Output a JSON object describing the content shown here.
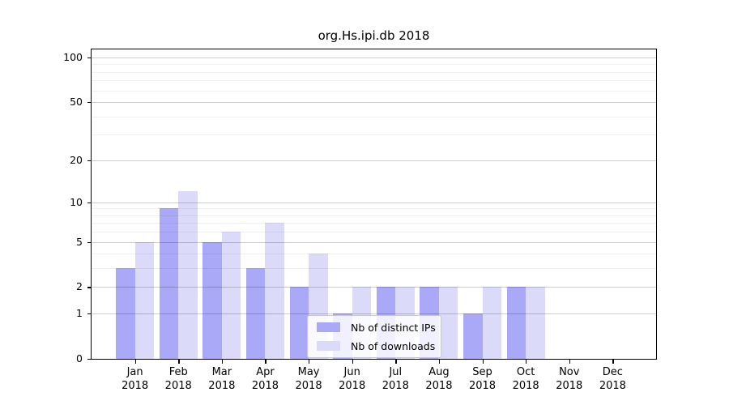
{
  "chart_data": {
    "type": "bar",
    "title": "org.Hs.ipi.db 2018",
    "categories": [
      "Jan 2018",
      "Feb 2018",
      "Mar 2018",
      "Apr 2018",
      "May 2018",
      "Jun 2018",
      "Jul 2018",
      "Aug 2018",
      "Sep 2018",
      "Oct 2018",
      "Nov 2018",
      "Dec 2018"
    ],
    "series": [
      {
        "name": "Nb of distinct IPs",
        "color": "#a9a9f7",
        "values": [
          3,
          9,
          5,
          3,
          2,
          1,
          2,
          2,
          1,
          2,
          0,
          0
        ]
      },
      {
        "name": "Nb of downloads",
        "color": "#dbdbf9",
        "values": [
          5,
          12,
          6,
          7,
          4,
          2,
          2,
          2,
          2,
          2,
          0,
          0
        ]
      }
    ],
    "xlabel": "",
    "ylabel": "",
    "y_axis": {
      "scale": "log1p",
      "ticks": [
        0,
        1,
        2,
        5,
        10,
        20,
        50,
        100
      ],
      "minor_gridlines": [
        3,
        4,
        6,
        7,
        8,
        9,
        30,
        40,
        60,
        70,
        80,
        90
      ],
      "ylim": [
        0,
        113
      ]
    },
    "grid": "horizontal",
    "legend_position": "inside-bottom-center",
    "colors": {
      "axis": "#000000",
      "background": "#ffffff"
    }
  }
}
